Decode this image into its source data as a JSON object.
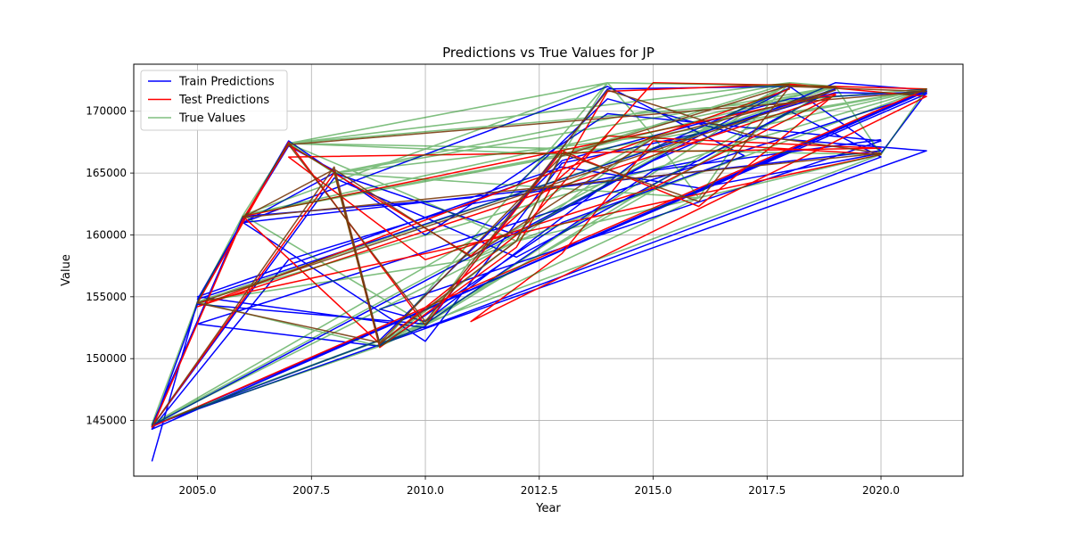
{
  "chart_data": {
    "type": "line",
    "title": "Predictions vs True Values for JP",
    "xlabel": "Year",
    "ylabel": "Value",
    "xlim": [
      2003.6,
      2021.8
    ],
    "ylim": [
      140500,
      173800
    ],
    "x_ticks": [
      2005.0,
      2007.5,
      2010.0,
      2012.5,
      2015.0,
      2017.5,
      2020.0
    ],
    "x_tick_labels": [
      "2005.0",
      "2007.5",
      "2010.0",
      "2012.5",
      "2015.0",
      "2017.5",
      "2020.0"
    ],
    "y_ticks": [
      145000,
      150000,
      155000,
      160000,
      165000,
      170000
    ],
    "y_tick_labels": [
      "145000",
      "150000",
      "155000",
      "160000",
      "165000",
      "170000"
    ],
    "grid": true,
    "legend_position": "top-left",
    "true_value_by_year": {
      "2004": 144700,
      "2005": 154600,
      "2006": 161600,
      "2007": 167400,
      "2008": 165000,
      "2009": 151000,
      "2010": 152800,
      "2011": 158000,
      "2012": 159500,
      "2013": 166500,
      "2014": 172300,
      "2015": 168000,
      "2016": 163000,
      "2017": 168500,
      "2018": 172300,
      "2019": 172000,
      "2020": 166500,
      "2021": 171800
    },
    "series": [
      {
        "name": "Train Predictions",
        "color": "#0000ff",
        "width": 1.5,
        "opacity": 1,
        "x": [
          2004,
          2005,
          2006,
          2007,
          2008,
          2009,
          2010,
          2014,
          2018,
          2020,
          2006,
          2010,
          2013,
          2016,
          2019,
          2021,
          2004,
          2008,
          2012,
          2017,
          2019,
          2005,
          2007,
          2010,
          2014,
          2020,
          2009,
          2010,
          2015,
          2018,
          2004,
          2006,
          2011,
          2013,
          2016,
          2020,
          2021,
          2005,
          2009,
          2013,
          2017,
          2014,
          2006,
          2008,
          2012,
          2015,
          2019,
          2021,
          2004,
          2007,
          2011,
          2016,
          2018,
          2020,
          2010,
          2005,
          2012,
          2014,
          2017,
          2021,
          2004,
          2009,
          2013,
          2018,
          2021,
          2004,
          2005,
          2010,
          2015,
          2020
        ],
        "y": [
          141700,
          154600,
          161200,
          167200,
          165200,
          151200,
          152600,
          171800,
          172000,
          166800,
          161000,
          151400,
          165800,
          168200,
          171500,
          171400,
          144500,
          164600,
          158200,
          168000,
          171800,
          154800,
          167600,
          160000,
          169800,
          167600,
          154000,
          153000,
          167000,
          171900,
          144600,
          161500,
          163000,
          165500,
          163800,
          166600,
          171500,
          152800,
          151000,
          161000,
          166400,
          172000,
          161000,
          165000,
          160000,
          166000,
          172300,
          171700,
          144300,
          158000,
          162500,
          166000,
          170000,
          166300,
          152500,
          155000,
          164000,
          171000,
          168000,
          166800,
          144600,
          151500,
          166000,
          171000,
          171600,
          144300,
          154400,
          152800,
          165200,
          167700
        ]
      },
      {
        "name": "Test Predictions",
        "color": "#ff0000",
        "width": 1.5,
        "opacity": 1,
        "x": [
          2004,
          2006,
          2007,
          2008,
          2009,
          2012,
          2014,
          2018,
          2021,
          2011,
          2013,
          2015,
          2020,
          2005,
          2007,
          2010,
          2013,
          2016,
          2019,
          2006,
          2009,
          2012,
          2015,
          2018,
          2021,
          2004,
          2008,
          2011,
          2014,
          2017,
          2020,
          2007,
          2010,
          2015,
          2019,
          2005,
          2012,
          2018
        ],
        "y": [
          144400,
          161300,
          167300,
          165100,
          150900,
          159000,
          171600,
          172200,
          171200,
          153000,
          158500,
          167600,
          166500,
          154500,
          167500,
          152700,
          166800,
          162300,
          171400,
          161500,
          151200,
          160000,
          172300,
          172100,
          171800,
          144500,
          165000,
          158300,
          168000,
          167500,
          167000,
          166300,
          158000,
          163800,
          171300,
          154200,
          164000,
          171800
        ]
      },
      {
        "name": "True Values",
        "color": "#008000",
        "width": 1.6,
        "opacity": 0.5,
        "x": [
          2004,
          2005,
          2006,
          2007,
          2008,
          2009,
          2010,
          2011,
          2012,
          2013,
          2014,
          2015,
          2016,
          2017,
          2018,
          2019,
          2020,
          2021,
          2007,
          2014,
          2019,
          2006,
          2010,
          2018,
          2004,
          2012,
          2021,
          2005,
          2009,
          2016,
          2020,
          2007,
          2013,
          2018,
          2008,
          2015,
          2004,
          2010,
          2017,
          2021,
          2006,
          2014,
          2009,
          2019,
          2005,
          2011,
          2018,
          2007,
          2012,
          2020,
          2004,
          2009,
          2015,
          2021,
          2006,
          2013,
          2019,
          2008,
          2016
        ],
        "y": [
          144700,
          154600,
          161600,
          167400,
          165000,
          151000,
          152800,
          158000,
          159500,
          166500,
          172300,
          168000,
          163000,
          168500,
          172300,
          172000,
          166500,
          171800,
          167400,
          172300,
          172000,
          161600,
          152800,
          172300,
          144700,
          159500,
          171800,
          154600,
          151000,
          163000,
          166500,
          167400,
          166500,
          172300,
          165000,
          168000,
          144700,
          152800,
          168500,
          171800,
          161600,
          172300,
          151000,
          172000,
          154600,
          158000,
          172300,
          167400,
          159500,
          166500,
          144700,
          151000,
          168000,
          171800,
          161600,
          166500,
          172000,
          165000,
          163000
        ]
      },
      {
        "name": "",
        "color": "#7a3b10",
        "width": 1.5,
        "opacity": 0.9,
        "x": [
          2004,
          2008,
          2009,
          2012,
          2013,
          2016,
          2018,
          2021,
          2007,
          2010,
          2014,
          2017,
          2020,
          2006,
          2008,
          2011,
          2015,
          2019,
          2005,
          2009,
          2013,
          2018
        ],
        "y": [
          144500,
          165500,
          151200,
          159500,
          166600,
          162700,
          172000,
          171600,
          167300,
          153000,
          171700,
          168200,
          166600,
          161400,
          165300,
          158200,
          167800,
          171700,
          154500,
          151300,
          166400,
          172100
        ]
      }
    ]
  }
}
